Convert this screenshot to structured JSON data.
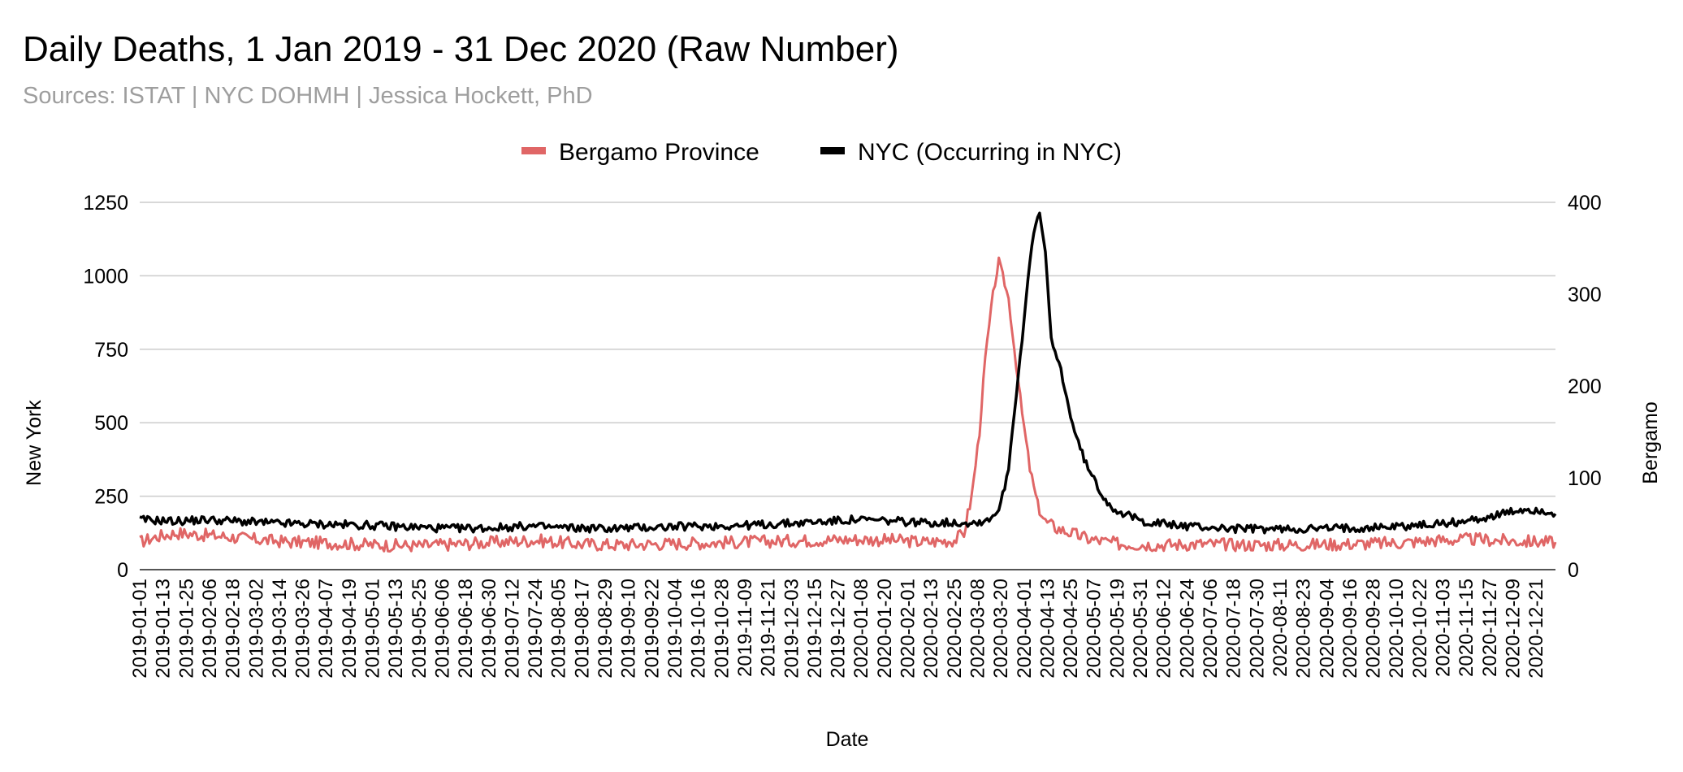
{
  "header": {
    "title": "Daily Deaths, 1 Jan 2019 - 31 Dec 2020 (Raw Number)",
    "subtitle": "Sources: ISTAT | NYC DOHMH | Jessica Hockett, PhD"
  },
  "chart_data": {
    "type": "line",
    "title": "Daily Deaths, 1 Jan 2019 - 31 Dec 2020 (Raw Number)",
    "subtitle": "Sources: ISTAT | NYC DOHMH | Jessica Hockett, PhD",
    "xlabel": "Date",
    "ylabel_left": "New York",
    "ylabel_right": "Bergamo",
    "x_range": [
      "2019-01-01",
      "2020-12-31"
    ],
    "ylim_left": [
      0,
      1250
    ],
    "ylim_right": [
      0,
      400
    ],
    "yticks_left": [
      0,
      250,
      500,
      750,
      1000,
      1250
    ],
    "yticks_right": [
      0,
      100,
      200,
      300,
      400
    ],
    "grid": true,
    "legend_position": "top-center",
    "x_ticks": [
      "2019-01-01",
      "2019-01-13",
      "2019-01-25",
      "2019-02-06",
      "2019-02-18",
      "2019-03-02",
      "2019-03-14",
      "2019-03-26",
      "2019-04-07",
      "2019-04-19",
      "2019-05-01",
      "2019-05-13",
      "2019-05-25",
      "2019-06-06",
      "2019-06-18",
      "2019-06-30",
      "2019-07-12",
      "2019-07-24",
      "2019-08-05",
      "2019-08-17",
      "2019-08-29",
      "2019-09-10",
      "2019-09-22",
      "2019-10-04",
      "2019-10-16",
      "2019-10-28",
      "2019-11-09",
      "2019-11-21",
      "2019-12-03",
      "2019-12-15",
      "2019-12-27",
      "2020-01-08",
      "2020-01-20",
      "2020-02-01",
      "2020-02-13",
      "2020-02-25",
      "2020-03-08",
      "2020-03-20",
      "2020-04-01",
      "2020-04-13",
      "2020-04-25",
      "2020-05-07",
      "2020-05-19",
      "2020-05-31",
      "2020-06-12",
      "2020-06-24",
      "2020-07-06",
      "2020-07-18",
      "2020-07-30",
      "2020-08-11",
      "2020-08-23",
      "2020-09-04",
      "2020-09-16",
      "2020-09-28",
      "2020-10-10",
      "2020-10-22",
      "2020-11-03",
      "2020-11-15",
      "2020-11-27",
      "2020-12-09",
      "2020-12-21"
    ],
    "series": [
      {
        "name": "Bergamo Province",
        "axis": "right",
        "color": "#e06666",
        "points": [
          [
            "2019-01-01",
            30
          ],
          [
            "2019-01-10",
            36
          ],
          [
            "2019-01-20",
            40
          ],
          [
            "2019-02-01",
            38
          ],
          [
            "2019-02-15",
            36
          ],
          [
            "2019-03-01",
            33
          ],
          [
            "2019-03-20",
            30
          ],
          [
            "2019-04-10",
            29
          ],
          [
            "2019-05-01",
            27
          ],
          [
            "2019-05-25",
            26
          ],
          [
            "2019-06-15",
            28
          ],
          [
            "2019-07-05",
            30
          ],
          [
            "2019-07-24",
            32
          ],
          [
            "2019-08-15",
            28
          ],
          [
            "2019-09-05",
            27
          ],
          [
            "2019-09-25",
            28
          ],
          [
            "2019-10-15",
            29
          ],
          [
            "2019-11-05",
            30
          ],
          [
            "2019-11-25",
            31
          ],
          [
            "2019-12-15",
            32
          ],
          [
            "2020-01-05",
            33
          ],
          [
            "2020-01-25",
            32
          ],
          [
            "2020-02-10",
            30
          ],
          [
            "2020-02-25",
            32
          ],
          [
            "2020-03-01",
            40
          ],
          [
            "2020-03-05",
            80
          ],
          [
            "2020-03-09",
            150
          ],
          [
            "2020-03-12",
            230
          ],
          [
            "2020-03-16",
            300
          ],
          [
            "2020-03-19",
            336
          ],
          [
            "2020-03-21",
            320
          ],
          [
            "2020-03-24",
            295
          ],
          [
            "2020-03-27",
            240
          ],
          [
            "2020-03-31",
            170
          ],
          [
            "2020-04-04",
            110
          ],
          [
            "2020-04-08",
            70
          ],
          [
            "2020-04-12",
            52
          ],
          [
            "2020-04-18",
            45
          ],
          [
            "2020-04-25",
            40
          ],
          [
            "2020-05-05",
            33
          ],
          [
            "2020-05-20",
            28
          ],
          [
            "2020-06-10",
            27
          ],
          [
            "2020-07-01",
            28
          ],
          [
            "2020-07-25",
            27
          ],
          [
            "2020-08-20",
            27
          ],
          [
            "2020-09-15",
            28
          ],
          [
            "2020-10-10",
            29
          ],
          [
            "2020-10-31",
            32
          ],
          [
            "2020-11-20",
            33
          ],
          [
            "2020-12-10",
            31
          ],
          [
            "2020-12-31",
            30
          ]
        ]
      },
      {
        "name": "NYC (Occurring in NYC)",
        "axis": "left",
        "color": "#000000",
        "points": [
          [
            "2019-01-01",
            170
          ],
          [
            "2019-01-20",
            165
          ],
          [
            "2019-02-05",
            170
          ],
          [
            "2019-02-20",
            165
          ],
          [
            "2019-03-10",
            158
          ],
          [
            "2019-04-01",
            155
          ],
          [
            "2019-04-25",
            152
          ],
          [
            "2019-05-20",
            145
          ],
          [
            "2019-06-10",
            140
          ],
          [
            "2019-07-01",
            142
          ],
          [
            "2019-07-20",
            148
          ],
          [
            "2019-08-10",
            142
          ],
          [
            "2019-09-01",
            140
          ],
          [
            "2019-09-25",
            145
          ],
          [
            "2019-10-15",
            148
          ],
          [
            "2019-11-05",
            150
          ],
          [
            "2019-11-25",
            155
          ],
          [
            "2019-12-15",
            162
          ],
          [
            "2020-01-05",
            170
          ],
          [
            "2020-01-25",
            165
          ],
          [
            "2020-02-10",
            160
          ],
          [
            "2020-02-25",
            160
          ],
          [
            "2020-03-08",
            160
          ],
          [
            "2020-03-15",
            175
          ],
          [
            "2020-03-20",
            220
          ],
          [
            "2020-03-24",
            350
          ],
          [
            "2020-03-28",
            600
          ],
          [
            "2020-04-01",
            850
          ],
          [
            "2020-04-04",
            1050
          ],
          [
            "2020-04-07",
            1180
          ],
          [
            "2020-04-09",
            1210
          ],
          [
            "2020-04-12",
            1080
          ],
          [
            "2020-04-15",
            780
          ],
          [
            "2020-04-20",
            680
          ],
          [
            "2020-04-25",
            520
          ],
          [
            "2020-04-30",
            410
          ],
          [
            "2020-05-05",
            330
          ],
          [
            "2020-05-10",
            270
          ],
          [
            "2020-05-15",
            220
          ],
          [
            "2020-05-22",
            190
          ],
          [
            "2020-06-01",
            165
          ],
          [
            "2020-06-20",
            150
          ],
          [
            "2020-07-15",
            140
          ],
          [
            "2020-08-10",
            138
          ],
          [
            "2020-09-05",
            140
          ],
          [
            "2020-10-01",
            145
          ],
          [
            "2020-10-25",
            152
          ],
          [
            "2020-11-15",
            165
          ],
          [
            "2020-12-01",
            185
          ],
          [
            "2020-12-15",
            205
          ],
          [
            "2020-12-25",
            200
          ],
          [
            "2020-12-31",
            190
          ]
        ]
      }
    ]
  }
}
